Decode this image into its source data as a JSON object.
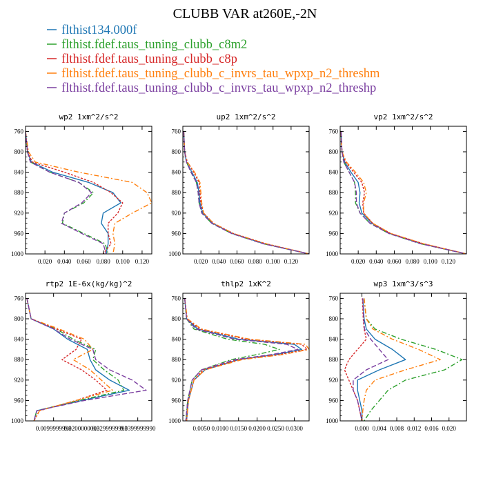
{
  "figure": {
    "title": "CLUBB VAR at260E,-2N",
    "legend": [
      {
        "label": "flthist134.000f",
        "color": "#1f77b4",
        "dash": ""
      },
      {
        "label": "flthist.fdef.taus_tuning_clubb_c8m2",
        "color": "#2ca02c",
        "dash": "7 3 2 3"
      },
      {
        "label": "flthist.fdef.taus_tuning_clubb_c8p",
        "color": "#d62728",
        "dash": "3 2"
      },
      {
        "label": "flthist.fdef.taus_tuning_clubb_c_invrs_tau_wpxp_n2_threshm",
        "color": "#ff7f0e",
        "dash": "7 3 2 3"
      },
      {
        "label": "flthist.fdef.taus_tuning_clubb_c_invrs_tau_wpxp_n2_threshp",
        "color": "#7b3fa0",
        "dash": "7 3"
      }
    ]
  },
  "chart_data": [
    {
      "type": "line",
      "title": "wp2  1xm^2/s^2",
      "xlim": [
        0,
        0.13
      ],
      "ylim": [
        1000,
        750
      ],
      "xticks": [
        0.02,
        0.04,
        0.06,
        0.08,
        0.1,
        0.12
      ],
      "xticklabels": [
        "0.020",
        "0.040",
        "0.060",
        "0.080",
        "0.100",
        "0.120"
      ],
      "yticks": [
        760,
        800,
        840,
        880,
        920,
        960,
        1000
      ],
      "yticklabels": [
        "760",
        "800",
        "840",
        "880",
        "920",
        "960",
        "1000"
      ],
      "y": [
        760,
        800,
        820,
        840,
        860,
        880,
        900,
        920,
        940,
        960,
        980,
        1000
      ],
      "series": [
        {
          "name": "flthist134.000f",
          "values": [
            0.0,
            0.002,
            0.006,
            0.028,
            0.065,
            0.09,
            0.098,
            0.08,
            0.078,
            0.085,
            0.085,
            0.083
          ]
        },
        {
          "name": "flthist.fdef.taus_tuning_clubb_c8m2",
          "values": [
            0.0,
            0.002,
            0.005,
            0.025,
            0.055,
            0.07,
            0.06,
            0.04,
            0.038,
            0.06,
            0.082,
            0.085
          ]
        },
        {
          "name": "flthist.fdef.taus_tuning_clubb_c8p",
          "values": [
            0.0,
            0.002,
            0.007,
            0.04,
            0.07,
            0.088,
            0.1,
            0.095,
            0.085,
            0.085,
            0.088,
            0.08
          ]
        },
        {
          "name": "flthist.fdef.taus_tuning_clubb_c_invrs_tau_wpxp_n2_threshm",
          "values": [
            0.0,
            0.003,
            0.01,
            0.055,
            0.11,
            0.125,
            0.13,
            0.11,
            0.092,
            0.09,
            0.092,
            0.09
          ]
        },
        {
          "name": "flthist.fdef.taus_tuning_clubb_c_invrs_tau_wpxp_n2_threshp",
          "values": [
            0.0,
            0.002,
            0.005,
            0.025,
            0.055,
            0.068,
            0.058,
            0.04,
            0.037,
            0.058,
            0.08,
            0.083
          ]
        }
      ]
    },
    {
      "type": "line",
      "title": "up2  1xm^2/s^2",
      "xlim": [
        0,
        0.14
      ],
      "ylim": [
        1000,
        750
      ],
      "xticks": [
        0.02,
        0.04,
        0.06,
        0.08,
        0.1,
        0.12
      ],
      "xticklabels": [
        "0.020",
        "0.040",
        "0.060",
        "0.080",
        "0.100",
        "0.120"
      ],
      "yticks": [
        760,
        800,
        840,
        880,
        920,
        960,
        1000
      ],
      "yticklabels": [
        "760",
        "800",
        "840",
        "880",
        "920",
        "960",
        "1000"
      ],
      "y": [
        760,
        800,
        820,
        840,
        860,
        880,
        900,
        920,
        940,
        960,
        980,
        1000
      ],
      "series": [
        {
          "name": "flthist134.000f",
          "values": [
            0.001,
            0.002,
            0.004,
            0.01,
            0.016,
            0.018,
            0.019,
            0.022,
            0.033,
            0.055,
            0.09,
            0.14
          ]
        },
        {
          "name": "flthist.fdef.taus_tuning_clubb_c8m2",
          "values": [
            0.001,
            0.002,
            0.004,
            0.009,
            0.015,
            0.017,
            0.018,
            0.021,
            0.032,
            0.054,
            0.089,
            0.14
          ]
        },
        {
          "name": "flthist.fdef.taus_tuning_clubb_c8p",
          "values": [
            0.001,
            0.002,
            0.005,
            0.012,
            0.018,
            0.019,
            0.02,
            0.023,
            0.034,
            0.056,
            0.092,
            0.14
          ]
        },
        {
          "name": "flthist.fdef.taus_tuning_clubb_c_invrs_tau_wpxp_n2_threshm",
          "values": [
            0.001,
            0.002,
            0.005,
            0.013,
            0.019,
            0.02,
            0.021,
            0.023,
            0.034,
            0.056,
            0.092,
            0.14
          ]
        },
        {
          "name": "flthist.fdef.taus_tuning_clubb_c_invrs_tau_wpxp_n2_threshp",
          "values": [
            0.001,
            0.002,
            0.004,
            0.009,
            0.015,
            0.017,
            0.018,
            0.021,
            0.032,
            0.054,
            0.089,
            0.14
          ]
        }
      ]
    },
    {
      "type": "line",
      "title": "vp2  1xm^2/s^2",
      "xlim": [
        0,
        0.14
      ],
      "ylim": [
        1000,
        750
      ],
      "xticks": [
        0.02,
        0.04,
        0.06,
        0.08,
        0.1,
        0.12
      ],
      "xticklabels": [
        "0.020",
        "0.040",
        "0.060",
        "0.080",
        "0.100",
        "0.120"
      ],
      "yticks": [
        760,
        800,
        840,
        880,
        920,
        960,
        1000
      ],
      "yticklabels": [
        "760",
        "800",
        "840",
        "880",
        "920",
        "960",
        "1000"
      ],
      "y": [
        760,
        800,
        820,
        840,
        860,
        880,
        900,
        920,
        940,
        960,
        980,
        1000
      ],
      "series": [
        {
          "name": "flthist134.000f",
          "values": [
            0.001,
            0.002,
            0.005,
            0.012,
            0.02,
            0.022,
            0.021,
            0.024,
            0.035,
            0.055,
            0.09,
            0.14
          ]
        },
        {
          "name": "flthist.fdef.taus_tuning_clubb_c8m2",
          "values": [
            0.001,
            0.002,
            0.004,
            0.01,
            0.016,
            0.017,
            0.017,
            0.022,
            0.033,
            0.054,
            0.089,
            0.14
          ]
        },
        {
          "name": "flthist.fdef.taus_tuning_clubb_c8p",
          "values": [
            0.001,
            0.002,
            0.006,
            0.015,
            0.024,
            0.027,
            0.025,
            0.026,
            0.036,
            0.056,
            0.092,
            0.14
          ]
        },
        {
          "name": "flthist.fdef.taus_tuning_clubb_c_invrs_tau_wpxp_n2_threshm",
          "values": [
            0.001,
            0.002,
            0.007,
            0.017,
            0.026,
            0.029,
            0.026,
            0.026,
            0.036,
            0.056,
            0.092,
            0.14
          ]
        },
        {
          "name": "flthist.fdef.taus_tuning_clubb_c_invrs_tau_wpxp_n2_threshp",
          "values": [
            0.001,
            0.002,
            0.004,
            0.01,
            0.016,
            0.018,
            0.018,
            0.022,
            0.033,
            0.054,
            0.089,
            0.14
          ]
        }
      ]
    },
    {
      "type": "line",
      "title": "rtp2  1E-6x(kg/kg)^2",
      "xlim": [
        0,
        0.045
      ],
      "ylim": [
        1000,
        750
      ],
      "xticks": [
        0.01,
        0.02,
        0.03,
        0.04
      ],
      "xticklabels": [
        "0.0099999998",
        "0.0200000003",
        "0.0299999993",
        "0.0399999990"
      ],
      "yticks": [
        760,
        800,
        840,
        880,
        920,
        960,
        1000
      ],
      "yticklabels": [
        "760",
        "800",
        "840",
        "880",
        "920",
        "960",
        "1000"
      ],
      "y": [
        760,
        800,
        820,
        840,
        860,
        880,
        900,
        920,
        940,
        960,
        980,
        1000
      ],
      "series": [
        {
          "name": "flthist134.000f",
          "values": [
            0.0005,
            0.002,
            0.01,
            0.015,
            0.022,
            0.023,
            0.025,
            0.03,
            0.037,
            0.02,
            0.004,
            0.003
          ]
        },
        {
          "name": "flthist.fdef.taus_tuning_clubb_c8m2",
          "values": [
            0.0005,
            0.002,
            0.011,
            0.017,
            0.025,
            0.024,
            0.028,
            0.033,
            0.035,
            0.019,
            0.004,
            0.003
          ]
        },
        {
          "name": "flthist.fdef.taus_tuning_clubb_c8p",
          "values": [
            0.0005,
            0.002,
            0.011,
            0.02,
            0.018,
            0.013,
            0.02,
            0.025,
            0.029,
            0.018,
            0.005,
            0.003
          ]
        },
        {
          "name": "flthist.fdef.taus_tuning_clubb_c_invrs_tau_wpxp_n2_threshm",
          "values": [
            0.0005,
            0.002,
            0.012,
            0.021,
            0.024,
            0.017,
            0.023,
            0.027,
            0.031,
            0.018,
            0.005,
            0.003
          ]
        },
        {
          "name": "flthist.fdef.taus_tuning_clubb_c_invrs_tau_wpxp_n2_threshp",
          "values": [
            0.0005,
            0.002,
            0.01,
            0.016,
            0.024,
            0.025,
            0.03,
            0.038,
            0.043,
            0.021,
            0.004,
            0.003
          ]
        }
      ]
    },
    {
      "type": "line",
      "title": "thlp2  1xK^2",
      "xlim": [
        0,
        0.034
      ],
      "ylim": [
        1000,
        750
      ],
      "xticks": [
        0.005,
        0.01,
        0.015,
        0.02,
        0.025,
        0.03
      ],
      "xticklabels": [
        "0.0050",
        "0.0100",
        "0.0150",
        "0.0200",
        "0.0250",
        "0.0300"
      ],
      "yticks": [
        760,
        800,
        840,
        880,
        920,
        960,
        1000
      ],
      "yticklabels": [
        "760",
        "800",
        "840",
        "880",
        "920",
        "960",
        "1000"
      ],
      "y": [
        760,
        800,
        820,
        840,
        850,
        860,
        870,
        880,
        900,
        920,
        960,
        1000
      ],
      "series": [
        {
          "name": "flthist134.000f",
          "values": [
            0.0005,
            0.001,
            0.004,
            0.015,
            0.03,
            0.032,
            0.025,
            0.015,
            0.006,
            0.003,
            0.0015,
            0.001
          ]
        },
        {
          "name": "flthist.fdef.taus_tuning_clubb_c8m2",
          "values": [
            0.0005,
            0.001,
            0.003,
            0.012,
            0.022,
            0.026,
            0.02,
            0.013,
            0.005,
            0.0025,
            0.0013,
            0.0008
          ]
        },
        {
          "name": "flthist.fdef.taus_tuning_clubb_c8p",
          "values": [
            0.0005,
            0.0011,
            0.0045,
            0.017,
            0.032,
            0.0335,
            0.026,
            0.015,
            0.0055,
            0.003,
            0.0015,
            0.001
          ]
        },
        {
          "name": "flthist.fdef.taus_tuning_clubb_c_invrs_tau_wpxp_n2_threshm",
          "values": [
            0.0005,
            0.0012,
            0.005,
            0.018,
            0.033,
            0.034,
            0.027,
            0.016,
            0.006,
            0.003,
            0.0015,
            0.001
          ]
        },
        {
          "name": "flthist.fdef.taus_tuning_clubb_c_invrs_tau_wpxp_n2_threshp",
          "values": [
            0.0005,
            0.001,
            0.0035,
            0.014,
            0.028,
            0.031,
            0.024,
            0.014,
            0.005,
            0.0025,
            0.0013,
            0.0008
          ]
        }
      ]
    },
    {
      "type": "line",
      "title": "wp3  1xm^3/s^3",
      "xlim": [
        -0.005,
        0.024
      ],
      "ylim": [
        1000,
        750
      ],
      "xticks": [
        0.0,
        0.004,
        0.008,
        0.012,
        0.016,
        0.02
      ],
      "xticklabels": [
        "0.000",
        "0.004",
        "0.008",
        "0.012",
        "0.016",
        "0.020"
      ],
      "yticks": [
        760,
        800,
        840,
        880,
        920,
        960,
        1000
      ],
      "yticklabels": [
        "760",
        "800",
        "840",
        "880",
        "920",
        "960",
        "1000"
      ],
      "y": [
        760,
        800,
        820,
        840,
        860,
        880,
        900,
        920,
        940,
        960,
        980,
        1000
      ],
      "series": [
        {
          "name": "flthist134.000f",
          "values": [
            0.0002,
            0.0005,
            0.001,
            0.003,
            0.007,
            0.01,
            0.004,
            -0.001,
            -0.001,
            -0.0005,
            0.0,
            0.0
          ]
        },
        {
          "name": "flthist.fdef.taus_tuning_clubb_c8m2",
          "values": [
            0.0005,
            0.001,
            0.003,
            0.009,
            0.017,
            0.023,
            0.019,
            0.01,
            0.006,
            0.004,
            0.002,
            0.0005
          ]
        },
        {
          "name": "flthist.fdef.taus_tuning_clubb_c8p",
          "values": [
            0.0001,
            0.0003,
            0.0005,
            0.001,
            -0.001,
            -0.003,
            -0.004,
            -0.003,
            -0.002,
            -0.001,
            -0.0005,
            0.0
          ]
        },
        {
          "name": "flthist.fdef.taus_tuning_clubb_c_invrs_tau_wpxp_n2_threshm",
          "values": [
            0.0005,
            0.001,
            0.0025,
            0.007,
            0.013,
            0.018,
            0.01,
            0.003,
            0.001,
            0.0005,
            0.0002,
            0.0
          ]
        },
        {
          "name": "flthist.fdef.taus_tuning_clubb_c_invrs_tau_wpxp_n2_threshp",
          "values": [
            0.0002,
            0.0004,
            0.0006,
            0.002,
            0.004,
            0.006,
            0.001,
            -0.002,
            -0.002,
            -0.001,
            -0.0005,
            0.0
          ]
        }
      ]
    }
  ]
}
